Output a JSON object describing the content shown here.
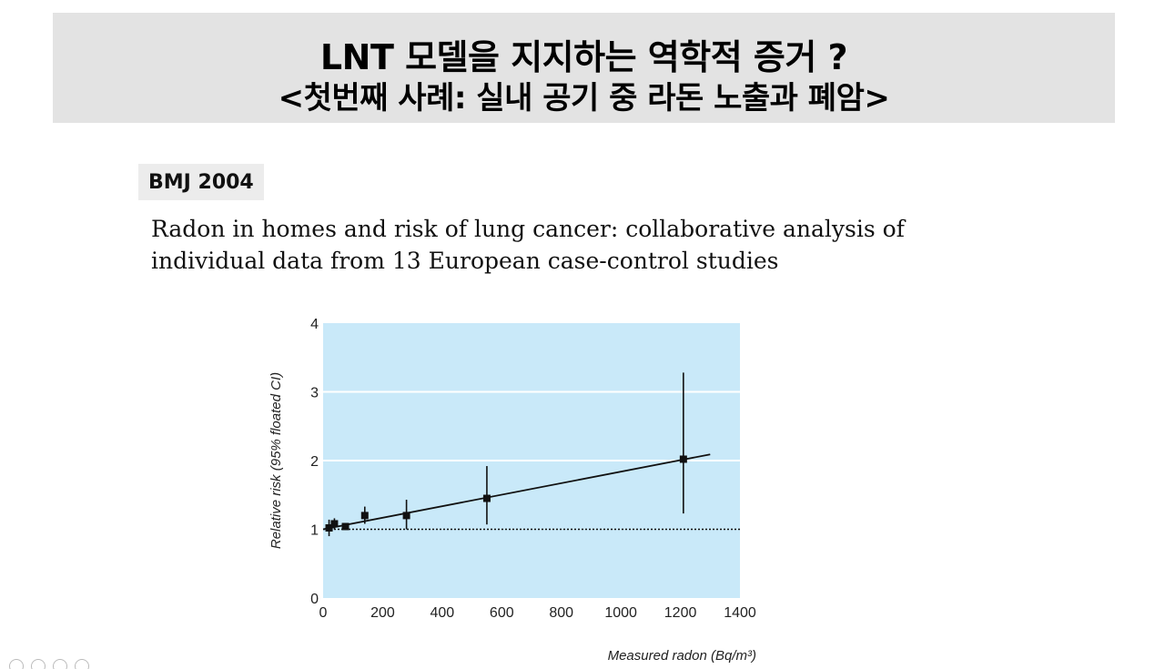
{
  "header": {
    "line1": "LNT 모델을 지지하는 역학적 증거 ?",
    "line2": "<첫번째 사례:  실내 공기 중 라돈 노출과 폐암>"
  },
  "badge": {
    "label": "BMJ 2004"
  },
  "paper": {
    "title_lines": [
      "Radon in homes and risk of lung cancer: collaborative analysis of",
      "individual data from 13 European case-control studies"
    ]
  },
  "chart_data": {
    "type": "scatter",
    "title": "",
    "xlabel": "Measured radon (Bq/m³)",
    "ylabel": "Relative risk (95% floated CI)",
    "xlim": [
      0,
      1400
    ],
    "ylim": [
      0,
      4
    ],
    "x_ticks": [
      0,
      200,
      400,
      600,
      800,
      1000,
      1200,
      1400
    ],
    "y_ticks": [
      0,
      1,
      2,
      3,
      4
    ],
    "grid": true,
    "background_color": "#c9e9f9",
    "reference_line": {
      "y": 1,
      "style": "dotted"
    },
    "fit_line": {
      "x": [
        0,
        1300
      ],
      "y": [
        1.0,
        2.09
      ]
    },
    "points": [
      {
        "x": 20,
        "y": 1.02,
        "ci_low": 0.9,
        "ci_high": 1.14
      },
      {
        "x": 38,
        "y": 1.08,
        "ci_low": 1.0,
        "ci_high": 1.16
      },
      {
        "x": 75,
        "y": 1.04,
        "ci_low": 0.99,
        "ci_high": 1.09
      },
      {
        "x": 140,
        "y": 1.2,
        "ci_low": 1.08,
        "ci_high": 1.33
      },
      {
        "x": 280,
        "y": 1.2,
        "ci_low": 1.0,
        "ci_high": 1.43
      },
      {
        "x": 550,
        "y": 1.45,
        "ci_low": 1.07,
        "ci_high": 1.92
      },
      {
        "x": 1210,
        "y": 2.02,
        "ci_low": 1.23,
        "ci_high": 3.28
      }
    ]
  }
}
